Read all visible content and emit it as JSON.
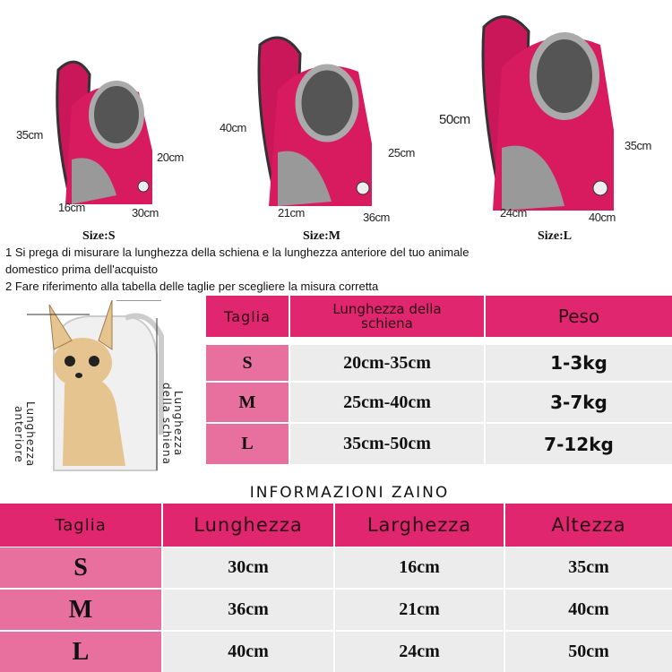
{
  "products": [
    {
      "size_label": "Size:S",
      "height": "35cm",
      "front": "20cm",
      "depth": "16cm",
      "width": "30cm"
    },
    {
      "size_label": "Size:M",
      "height": "40cm",
      "front": "25cm",
      "depth": "21cm",
      "width": "36cm"
    },
    {
      "size_label": "Size:L",
      "height": "50cm",
      "front": "35cm",
      "depth": "24cm",
      "width": "40cm"
    }
  ],
  "notes": [
    "1 Si prega di misurare la lunghezza della schiena e la lunghezza anteriore del tuo animale",
    "domestico prima dell'acquisto",
    "2 Fare riferimento alla tabella delle taglie per scegliere la misura corretta"
  ],
  "diagram": {
    "back_label": "Lunghezza della schiena",
    "front_label": "Lunghezza anteriore"
  },
  "size_table": {
    "headers": [
      "Taglia",
      "Lunghezza della schiena",
      "Peso"
    ],
    "rows": [
      [
        "S",
        "20cm-35cm",
        "1-3kg"
      ],
      [
        "M",
        "25cm-40cm",
        "3-7kg"
      ],
      [
        "L",
        "35cm-50cm",
        "7-12kg"
      ]
    ]
  },
  "info_title": "INFORMAZIONI ZAINO",
  "info_table": {
    "headers": [
      "Taglia",
      "Lunghezza",
      "Larghezza",
      "Altezza"
    ],
    "rows": [
      [
        "S",
        "30cm",
        "16cm",
        "35cm"
      ],
      [
        "M",
        "36cm",
        "21cm",
        "40cm"
      ],
      [
        "L",
        "40cm",
        "24cm",
        "50cm"
      ]
    ]
  },
  "colors": {
    "header_pink": "#e0266e",
    "key_pink": "#e8709e",
    "cell_gray": "#ececec",
    "bag_pink": "#d81b5e"
  }
}
